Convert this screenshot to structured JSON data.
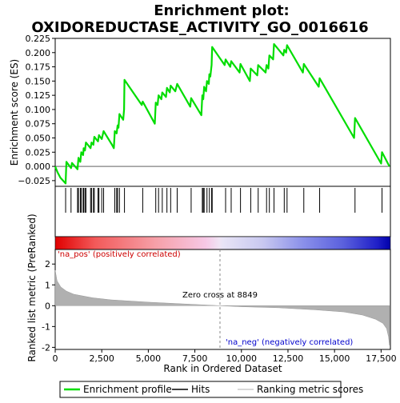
{
  "chart_data": {
    "type": "line",
    "title_line1": "Enrichment plot:",
    "title_line2": "OXIDOREDUCTASE_ACTIVITY_GO_0016616",
    "top_panel": {
      "ylabel": "Enrichment score (ES)",
      "ylim": [
        -0.035,
        0.225
      ],
      "yticks": [
        -0.025,
        0.0,
        0.025,
        0.05,
        0.075,
        0.1,
        0.125,
        0.15,
        0.175,
        0.2,
        0.225
      ],
      "ytick_labels": [
        "−0.025",
        "0.000",
        "0.025",
        "0.050",
        "0.075",
        "0.100",
        "0.125",
        "0.150",
        "0.175",
        "0.200",
        "0.225"
      ],
      "series_color": "#00dd00",
      "es_profile": [
        [
          0,
          0.0
        ],
        [
          120,
          -0.01
        ],
        [
          280,
          -0.02
        ],
        [
          560,
          -0.03
        ],
        [
          600,
          0.008
        ],
        [
          850,
          -0.003
        ],
        [
          900,
          0.006
        ],
        [
          1200,
          -0.005
        ],
        [
          1250,
          0.015
        ],
        [
          1350,
          0.008
        ],
        [
          1400,
          0.025
        ],
        [
          1500,
          0.02
        ],
        [
          1530,
          0.032
        ],
        [
          1600,
          0.028
        ],
        [
          1650,
          0.042
        ],
        [
          1900,
          0.032
        ],
        [
          1950,
          0.042
        ],
        [
          2050,
          0.038
        ],
        [
          2100,
          0.052
        ],
        [
          2300,
          0.044
        ],
        [
          2350,
          0.055
        ],
        [
          2500,
          0.048
        ],
        [
          2600,
          0.062
        ],
        [
          3050,
          0.038
        ],
        [
          3150,
          0.032
        ],
        [
          3200,
          0.062
        ],
        [
          3300,
          0.058
        ],
        [
          3350,
          0.072
        ],
        [
          3400,
          0.068
        ],
        [
          3450,
          0.092
        ],
        [
          3650,
          0.082
        ],
        [
          3700,
          0.1
        ],
        [
          3720,
          0.152
        ],
        [
          4650,
          0.108
        ],
        [
          4700,
          0.114
        ],
        [
          5350,
          0.075
        ],
        [
          5400,
          0.112
        ],
        [
          5500,
          0.108
        ],
        [
          5550,
          0.125
        ],
        [
          5700,
          0.118
        ],
        [
          5750,
          0.13
        ],
        [
          5950,
          0.122
        ],
        [
          6000,
          0.138
        ],
        [
          6150,
          0.13
        ],
        [
          6200,
          0.142
        ],
        [
          6450,
          0.132
        ],
        [
          6550,
          0.145
        ],
        [
          7250,
          0.105
        ],
        [
          7300,
          0.12
        ],
        [
          7850,
          0.09
        ],
        [
          7900,
          0.125
        ],
        [
          7950,
          0.118
        ],
        [
          8000,
          0.14
        ],
        [
          8100,
          0.132
        ],
        [
          8150,
          0.15
        ],
        [
          8250,
          0.145
        ],
        [
          8280,
          0.162
        ],
        [
          8330,
          0.158
        ],
        [
          8400,
          0.178
        ],
        [
          8430,
          0.21
        ],
        [
          9100,
          0.178
        ],
        [
          9150,
          0.188
        ],
        [
          9400,
          0.175
        ],
        [
          9450,
          0.185
        ],
        [
          9900,
          0.165
        ],
        [
          9950,
          0.18
        ],
        [
          10450,
          0.15
        ],
        [
          10500,
          0.172
        ],
        [
          10850,
          0.16
        ],
        [
          10900,
          0.178
        ],
        [
          11300,
          0.165
        ],
        [
          11350,
          0.178
        ],
        [
          11450,
          0.172
        ],
        [
          11500,
          0.195
        ],
        [
          11700,
          0.188
        ],
        [
          11750,
          0.215
        ],
        [
          12250,
          0.195
        ],
        [
          12300,
          0.205
        ],
        [
          12400,
          0.2
        ],
        [
          12450,
          0.213
        ],
        [
          13300,
          0.165
        ],
        [
          13350,
          0.18
        ],
        [
          14150,
          0.14
        ],
        [
          14200,
          0.155
        ],
        [
          16050,
          0.05
        ],
        [
          16100,
          0.085
        ],
        [
          17500,
          0.005
        ],
        [
          17550,
          0.025
        ],
        [
          17950,
          0.0
        ]
      ],
      "hit_positions": [
        560,
        850,
        1200,
        1250,
        1350,
        1400,
        1500,
        1530,
        1600,
        1650,
        1900,
        1950,
        2050,
        2100,
        2300,
        2350,
        2500,
        2600,
        3200,
        3300,
        3350,
        3450,
        3720,
        4700,
        5400,
        5550,
        5750,
        6000,
        6200,
        6550,
        7300,
        7900,
        7950,
        8000,
        8150,
        8280,
        8400,
        8430,
        9150,
        9450,
        9950,
        10500,
        10900,
        11350,
        11500,
        11750,
        12300,
        12450,
        13350,
        14200,
        16100,
        17550
      ]
    },
    "bottom_panel": {
      "ylabel": "Ranked list metric (PreRanked)",
      "xlabel": "Rank in Ordered Dataset",
      "xlim": [
        0,
        18000
      ],
      "xticks": [
        0,
        2500,
        5000,
        7500,
        10000,
        12500,
        15000,
        17500
      ],
      "xtick_labels": [
        "0",
        "2,500",
        "5,000",
        "7,500",
        "10,000",
        "12,500",
        "15,000",
        "17,500"
      ],
      "ylim": [
        -2.1,
        2.7
      ],
      "yticks": [
        -2,
        -1,
        0,
        1,
        2
      ],
      "ytick_labels": [
        "-2",
        "-1",
        "0",
        "1",
        "2"
      ],
      "metric_curve": [
        [
          0,
          1.7
        ],
        [
          100,
          1.2
        ],
        [
          300,
          0.9
        ],
        [
          600,
          0.7
        ],
        [
          1000,
          0.55
        ],
        [
          2000,
          0.38
        ],
        [
          3000,
          0.28
        ],
        [
          5000,
          0.17
        ],
        [
          7000,
          0.08
        ],
        [
          8849,
          0.0
        ],
        [
          10000,
          -0.05
        ],
        [
          12000,
          -0.1
        ],
        [
          14000,
          -0.2
        ],
        [
          15500,
          -0.3
        ],
        [
          16500,
          -0.45
        ],
        [
          17200,
          -0.65
        ],
        [
          17600,
          -0.85
        ],
        [
          17800,
          -1.1
        ],
        [
          17900,
          -1.5
        ],
        [
          17950,
          -1.9
        ]
      ],
      "fill_color": "#b0b0b0",
      "zero_cross_label": "Zero cross at 8849",
      "zero_cross_rank": 8849,
      "pos_label": "'na_pos' (positively correlated)",
      "neg_label": "'na_neg' (negatively correlated)",
      "pos_label_color": "#cc0000",
      "neg_label_color": "#0000cc"
    },
    "legend": {
      "items": [
        {
          "label": "Enrichment profile",
          "color": "#00dd00"
        },
        {
          "label": "Hits",
          "color": "#000000"
        },
        {
          "label": "Ranking metric scores",
          "color": "#b0b0b0"
        }
      ]
    }
  }
}
